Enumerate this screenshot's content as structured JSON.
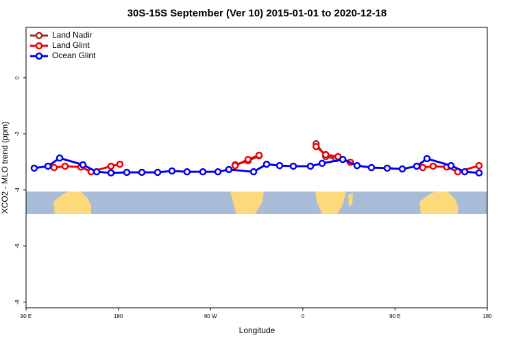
{
  "chart_data": {
    "type": "line",
    "title": "30S-15S September (Ver 10)   2015-01-01 to 2020-12-18",
    "x_label": "Longitude",
    "y_label": "XCO2 - MLO trend (ppm)",
    "xlim": [
      90,
      540
    ],
    "xticks": [
      {
        "value": 90,
        "label": "90 E"
      },
      180,
      {
        "value": 270,
        "label": "90 W"
      },
      {
        "value": 360,
        "label": "0"
      },
      {
        "value": 450,
        "label": "90 E"
      },
      {
        "value": 540,
        "label": "180"
      }
    ],
    "ylim": [
      -8.2,
      1.8
    ],
    "yticks": [
      0,
      -2,
      -4,
      -6,
      -8
    ],
    "legend": "top-left",
    "series": [
      {
        "name": "Land Nadir",
        "color": "#a52a2a",
        "x": [
          294,
          306.6,
          317.3,
          null,
          373,
          382.4,
          392.4
        ],
        "values": [
          -3.1,
          -2.96,
          -2.78,
          null,
          -2.35,
          -2.81,
          -2.88
        ]
      },
      {
        "name": "Land Glint",
        "color": "#ee0000",
        "x": [
          117.4,
          128.1,
          143.5,
          153.5,
          172.9,
          181.6,
          null,
          294,
          306.6,
          317.3,
          null,
          373,
          382.4,
          394.4,
          406.5,
          null,
          477.1,
          487.2,
          500.5,
          511.2,
          532
        ],
        "values": [
          -3.2,
          -3.15,
          -3.18,
          -3.35,
          -3.15,
          -3.08,
          null,
          -3.13,
          -2.91,
          -2.76,
          null,
          -2.45,
          -2.74,
          -2.81,
          -3.01,
          null,
          -3.2,
          -3.15,
          -3.18,
          -3.35,
          -3.13
        ]
      },
      {
        "name": "Ocean Glint",
        "color": "#0000ee",
        "x": [
          98,
          111.4,
          122.8,
          145.5,
          158.9,
          172.9,
          188.3,
          203,
          218.4,
          232.4,
          247.1,
          262.5,
          277.2,
          287.9,
          312,
          324.7,
          337.4,
          350.8,
          367.5,
          378.9,
          399,
          413,
          427,
          442.4,
          457.1,
          471.2,
          481.2,
          504.6,
          518,
          532
        ],
        "values": [
          -3.22,
          -3.15,
          -2.86,
          -3.1,
          -3.35,
          -3.39,
          -3.37,
          -3.37,
          -3.37,
          -3.32,
          -3.35,
          -3.35,
          -3.35,
          -3.27,
          -3.35,
          -3.08,
          -3.13,
          -3.15,
          -3.15,
          -3.05,
          -2.91,
          -3.13,
          -3.2,
          -3.22,
          -3.25,
          -3.15,
          -2.88,
          -3.13,
          -3.35,
          -3.39
        ]
      }
    ]
  }
}
